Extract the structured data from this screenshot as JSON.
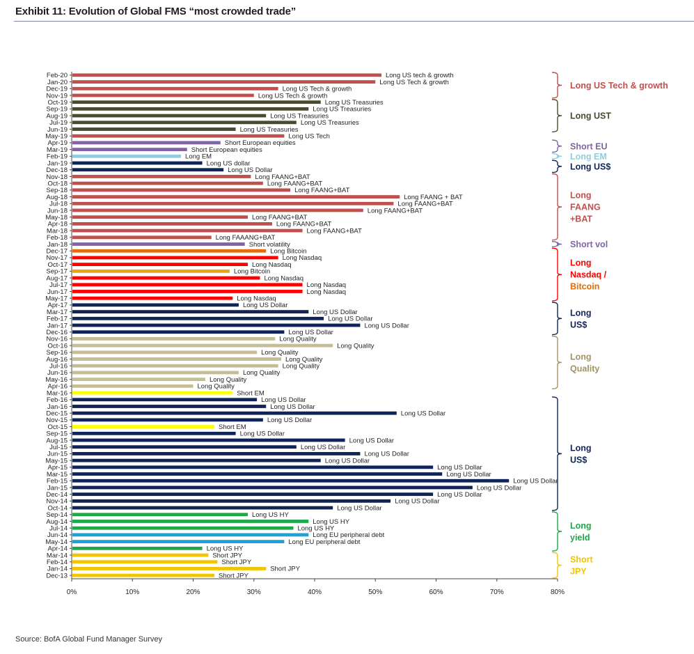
{
  "title": "Exhibit 11: Evolution of Global FMS “most crowded trade”",
  "source": "Source:  BofA Global Fund Manager Survey",
  "chart_data": {
    "type": "bar",
    "orientation": "horizontal",
    "xlim": [
      0,
      80
    ],
    "xticks": [
      "0%",
      "10%",
      "20%",
      "30%",
      "40%",
      "50%",
      "60%",
      "70%",
      "80%"
    ],
    "rows": [
      {
        "month": "Feb-20",
        "value": 51,
        "label": "Long US tech & growth",
        "color": "#c0504d"
      },
      {
        "month": "Jan-20",
        "value": 50,
        "label": "Long US Tech & growth",
        "color": "#c0504d"
      },
      {
        "month": "Dec-19",
        "value": 34,
        "label": "Long US Tech & growth",
        "color": "#c0504d"
      },
      {
        "month": "Nov-19",
        "value": 30,
        "label": "Long US Tech & growth",
        "color": "#c0504d"
      },
      {
        "month": "Oct-19",
        "value": 41,
        "label": "Long US Treasuries",
        "color": "#4a4a2e"
      },
      {
        "month": "Sep-19",
        "value": 39,
        "label": "Long US Treasuries",
        "color": "#4a4a2e"
      },
      {
        "month": "Aug-19",
        "value": 32,
        "label": "Long US Treasuries",
        "color": "#4a4a2e"
      },
      {
        "month": "Jul-19",
        "value": 37,
        "label": "Long US Treasuries",
        "color": "#4a4a2e"
      },
      {
        "month": "Jun-19",
        "value": 27,
        "label": "Long US Treasuries",
        "color": "#4a4a2e"
      },
      {
        "month": "May-19",
        "value": 35,
        "label": "Long US Tech",
        "color": "#c0504d"
      },
      {
        "month": "Apr-19",
        "value": 24.5,
        "label": "Short European equities",
        "color": "#8064a2"
      },
      {
        "month": "Mar-19",
        "value": 19,
        "label": "Short European equities",
        "color": "#8064a2"
      },
      {
        "month": "Feb-19",
        "value": 18,
        "label": "Long EM",
        "color": "#93cddd"
      },
      {
        "month": "Jan-19",
        "value": 21.5,
        "label": "Long US dollar",
        "color": "#0f2557"
      },
      {
        "month": "Dec-18",
        "value": 25,
        "label": "Long US Dollar",
        "color": "#0f2557"
      },
      {
        "month": "Nov-18",
        "value": 29.5,
        "label": "Long FAANG+BAT",
        "color": "#c0504d"
      },
      {
        "month": "Oct-18",
        "value": 31.5,
        "label": "Long FAANG+BAT",
        "color": "#c0504d"
      },
      {
        "month": "Sep-18",
        "value": 36,
        "label": "Long FAANG+BAT",
        "color": "#c0504d"
      },
      {
        "month": "Aug-18",
        "value": 54,
        "label": "Long FAANG + BAT",
        "color": "#c0504d"
      },
      {
        "month": "Jul-18",
        "value": 53,
        "label": "Long FAANG+BAT",
        "color": "#c0504d"
      },
      {
        "month": "Jun-18",
        "value": 48,
        "label": "Long FAANG+BAT",
        "color": "#c0504d"
      },
      {
        "month": "May-18",
        "value": 29,
        "label": "Long FAANG+BAT",
        "color": "#c0504d"
      },
      {
        "month": "Apr-18",
        "value": 33,
        "label": "Long FAANG+BAT",
        "color": "#c0504d"
      },
      {
        "month": "Mar-18",
        "value": 38,
        "label": "Long FAANG+BAT",
        "color": "#c0504d"
      },
      {
        "month": "Feb-18",
        "value": 23,
        "label": "Long FAAANG+BAT",
        "color": "#c0504d"
      },
      {
        "month": "Jan-18",
        "value": 28.5,
        "label": "Short volatility",
        "color": "#8064a2"
      },
      {
        "month": "Dec-17",
        "value": 32,
        "label": "Long Bitcoin",
        "color": "#e36c09"
      },
      {
        "month": "Nov-17",
        "value": 34,
        "label": "Long Nasdaq",
        "color": "#ff0000"
      },
      {
        "month": "Oct-17",
        "value": 29,
        "label": "Long Nasdaq",
        "color": "#ff0000"
      },
      {
        "month": "Sep-17",
        "value": 26,
        "label": "Long Bitcoin",
        "color": "#e8a317"
      },
      {
        "month": "Aug-17",
        "value": 31,
        "label": "Long Nasdaq",
        "color": "#ff0000"
      },
      {
        "month": "Jul-17",
        "value": 38,
        "label": "Long Nasdaq",
        "color": "#ff0000"
      },
      {
        "month": "Jun-17",
        "value": 38,
        "label": "Long Nasdaq",
        "color": "#ff0000"
      },
      {
        "month": "May-17",
        "value": 26.5,
        "label": "Long Nasdaq",
        "color": "#ff0000"
      },
      {
        "month": "Apr-17",
        "value": 27.5,
        "label": "Long US Dollar",
        "color": "#0f2557"
      },
      {
        "month": "Mar-17",
        "value": 39,
        "label": "Long US Dollar",
        "color": "#0f2557"
      },
      {
        "month": "Feb-17",
        "value": 41.5,
        "label": "Long US Dollar",
        "color": "#0f2557"
      },
      {
        "month": "Jan-17",
        "value": 47.5,
        "label": "Long US Dollar",
        "color": "#0f2557"
      },
      {
        "month": "Dec-16",
        "value": 35,
        "label": "Long US Dollar",
        "color": "#0f2557"
      },
      {
        "month": "Nov-16",
        "value": 33.5,
        "label": "Long Quality",
        "color": "#c4bd97"
      },
      {
        "month": "Oct-16",
        "value": 43,
        "label": "Long Quality",
        "color": "#c4bd97"
      },
      {
        "month": "Sep-16",
        "value": 30.5,
        "label": "Long Quality",
        "color": "#c4bd97"
      },
      {
        "month": "Aug-16",
        "value": 34.5,
        "label": "Long Quality",
        "color": "#c4bd97"
      },
      {
        "month": "Jul-16",
        "value": 34,
        "label": "Long Quality",
        "color": "#c4bd97"
      },
      {
        "month": "Jun-16",
        "value": 27.5,
        "label": "Long Quality",
        "color": "#c4bd97"
      },
      {
        "month": "May-16",
        "value": 22,
        "label": "Long Quality",
        "color": "#c4bd97"
      },
      {
        "month": "Apr-16",
        "value": 20,
        "label": "Long Quality",
        "color": "#c4bd97"
      },
      {
        "month": "Mar-16",
        "value": 26.5,
        "label": "Short EM",
        "color": "#ffff00"
      },
      {
        "month": "Feb-16",
        "value": 30.5,
        "label": "Long US Dollar",
        "color": "#0f2557"
      },
      {
        "month": "Jan-16",
        "value": 32,
        "label": "Long US Dollar",
        "color": "#0f2557"
      },
      {
        "month": "Dec-15",
        "value": 53.5,
        "label": "Long US Dollar",
        "color": "#0f2557"
      },
      {
        "month": "Nov-15",
        "value": 31.5,
        "label": "Long US Dollar",
        "color": "#0f2557"
      },
      {
        "month": "Oct-15",
        "value": 23.5,
        "label": "Short EM",
        "color": "#ffff00"
      },
      {
        "month": "Sep-15",
        "value": 27,
        "label": "Long US Dollar",
        "color": "#0f2557"
      },
      {
        "month": "Aug-15",
        "value": 45,
        "label": "Long US Dollar",
        "color": "#0f2557"
      },
      {
        "month": "Jul-15",
        "value": 37,
        "label": "Long US Dollar",
        "color": "#0f2557"
      },
      {
        "month": "Jun-15",
        "value": 47.5,
        "label": "Long US Dollar",
        "color": "#0f2557"
      },
      {
        "month": "May-15",
        "value": 41,
        "label": "Long US Dollar",
        "color": "#0f2557"
      },
      {
        "month": "Apr-15",
        "value": 59.5,
        "label": "Long US Dollar",
        "color": "#0f2557"
      },
      {
        "month": "Mar-15",
        "value": 61,
        "label": "Long US Dollar",
        "color": "#0f2557"
      },
      {
        "month": "Feb-15",
        "value": 72,
        "label": "Long US Dollar",
        "color": "#0f2557"
      },
      {
        "month": "Jan-15",
        "value": 66,
        "label": "Long US Dollar",
        "color": "#0f2557"
      },
      {
        "month": "Dec-14",
        "value": 59.5,
        "label": "Long US Dollar",
        "color": "#0f2557"
      },
      {
        "month": "Nov-14",
        "value": 52.5,
        "label": "Long US Dollar",
        "color": "#0f2557"
      },
      {
        "month": "Oct-14",
        "value": 43,
        "label": "Long US Dollar",
        "color": "#0f2557"
      },
      {
        "month": "Sep-14",
        "value": 29,
        "label": "Long US HY",
        "color": "#1fa84a"
      },
      {
        "month": "Aug-14",
        "value": 39,
        "label": "Long US HY",
        "color": "#1fa84a"
      },
      {
        "month": "Jul-14",
        "value": 36.5,
        "label": "Long US HY",
        "color": "#1fa84a"
      },
      {
        "month": "Jun-14",
        "value": 39,
        "label": "Long EU peripheral debt",
        "color": "#1fa0d8"
      },
      {
        "month": "May-14",
        "value": 35,
        "label": "Long EU peripheral debt",
        "color": "#1fa0d8"
      },
      {
        "month": "Apr-14",
        "value": 21.5,
        "label": "Long US HY",
        "color": "#1fa84a"
      },
      {
        "month": "Mar-14",
        "value": 22.5,
        "label": "Short JPY",
        "color": "#f2c500"
      },
      {
        "month": "Feb-14",
        "value": 24,
        "label": "Short JPY",
        "color": "#f2c500"
      },
      {
        "month": "Jan-14",
        "value": 32,
        "label": "Short JPY",
        "color": "#f2c500"
      },
      {
        "month": "Dec-13",
        "value": 23.5,
        "label": "Short JPY",
        "color": "#f2c500"
      }
    ],
    "groups": [
      {
        "from": "Feb-20",
        "to": "Nov-19",
        "label": [
          "Long US Tech & growth"
        ],
        "color": "#c0504d"
      },
      {
        "from": "Oct-19",
        "to": "Jun-19",
        "label": [
          "Long UST"
        ],
        "color": "#4a4a2e"
      },
      {
        "from": "Apr-19",
        "to": "Mar-19",
        "label": [
          "Short EU"
        ],
        "color": "#8064a2"
      },
      {
        "from": "Feb-19",
        "to": "Feb-19",
        "label": [
          "Long EM"
        ],
        "color": "#93cddd"
      },
      {
        "from": "Jan-19",
        "to": "Dec-18",
        "label": [
          "Long US$"
        ],
        "color": "#0f2557"
      },
      {
        "from": "Nov-18",
        "to": "Feb-18",
        "label": [
          "Long",
          "FAANG",
          "+BAT"
        ],
        "color": "#c0504d"
      },
      {
        "from": "Jan-18",
        "to": "Jan-18",
        "label": [
          "Short vol"
        ],
        "color": "#8064a2"
      },
      {
        "from": "Dec-17",
        "to": "May-17",
        "label": [
          "Long",
          "Nasdaq /",
          "Bitcoin"
        ],
        "color": "#ff0000",
        "last_line_color": "#e36c09"
      },
      {
        "from": "Apr-17",
        "to": "Dec-16",
        "label": [
          "Long",
          "US$"
        ],
        "color": "#0f2557"
      },
      {
        "from": "Nov-16",
        "to": "Apr-16",
        "label": [
          "Long",
          "Quality"
        ],
        "color": "#a39262"
      },
      {
        "from": "Feb-16",
        "to": "Oct-14",
        "label": [
          "Long",
          "US$"
        ],
        "color": "#0f2557"
      },
      {
        "from": "Sep-14",
        "to": "Apr-14",
        "label": [
          "Long",
          "yield"
        ],
        "color": "#1fa84a"
      },
      {
        "from": "Mar-14",
        "to": "Dec-13",
        "label": [
          "Short",
          "JPY"
        ],
        "color": "#f2c500"
      }
    ]
  }
}
